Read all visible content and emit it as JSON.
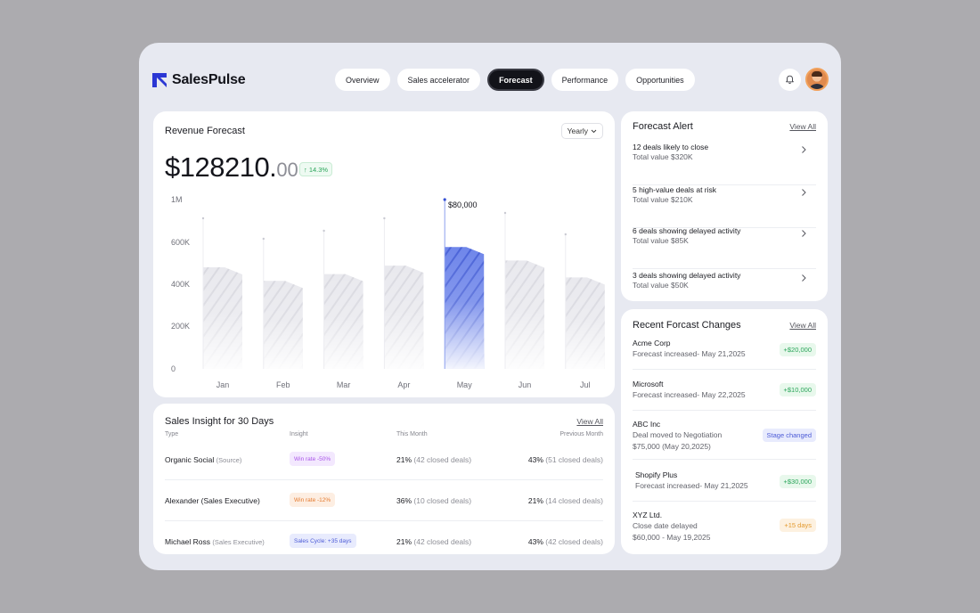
{
  "app": {
    "name": "SalesPulse"
  },
  "nav": {
    "tabs": [
      {
        "label": "Overview"
      },
      {
        "label": "Sales accelerator"
      },
      {
        "label": "Forecast",
        "active": true
      },
      {
        "label": "Performance"
      },
      {
        "label": "Opportunities"
      }
    ]
  },
  "icons": {
    "logo": "salespulse-logo",
    "notification": "bell-icon",
    "avatar": "user-avatar"
  },
  "colors": {
    "accent": "#4a63d8",
    "active_tab": "#121319",
    "positive": "#2aa55a"
  },
  "revenue": {
    "title": "Revenue Forecast",
    "period": "Yearly",
    "amount_main": "$128210.",
    "amount_cents": "00",
    "growth": "↑ 14.3%",
    "tooltip": "$80,000"
  },
  "chart_data": {
    "type": "bar",
    "categories": [
      "Jan",
      "Feb",
      "Mar",
      "Apr",
      "May",
      "Jun",
      "Jul"
    ],
    "values": [
      600000,
      520000,
      560000,
      610000,
      720000,
      640000,
      540000
    ],
    "yticks": [
      "1M",
      "600K",
      "400K",
      "200K",
      "0"
    ],
    "highlight": "May",
    "grid": false,
    "legend": "none"
  },
  "insight": {
    "title": "Sales Insight for 30 Days",
    "view_all": "View All",
    "headers": {
      "type": "Type",
      "insight": "Insight",
      "this_month": "This Month",
      "previous_month": "Previous Month"
    },
    "rows": [
      {
        "name": "Organic Social",
        "sub": "(Source)",
        "pill": "Win rate -50%",
        "pill_color": "purple",
        "this_pct": "21%",
        "this_note": "(42 closed deals)",
        "prev_pct": "43%",
        "prev_note": "(51 closed deals)"
      },
      {
        "name": "Alexander  (Sales Executive)",
        "sub": "",
        "pill": "Win rate -12%",
        "pill_color": "orange",
        "this_pct": "36%",
        "this_note": "(10 closed deals)",
        "prev_pct": "21%",
        "prev_note": "(14 closed deals)"
      },
      {
        "name": "Michael Ross",
        "sub": "(Sales Executive)",
        "pill": "Sales Cycle: +35 days",
        "pill_color": "blue",
        "this_pct": "21%",
        "this_note": "(42 closed deals)",
        "prev_pct": "43%",
        "prev_note": "(42 closed deals)"
      }
    ]
  },
  "alerts": {
    "title": "Forecast Alert",
    "view_all": "View All",
    "items": [
      {
        "title": "12 deals likely to close",
        "value": "Total value $320K"
      },
      {
        "title": "5 high-value deals at risk",
        "value": "Total value $210K"
      },
      {
        "title": "6 deals showing delayed activity",
        "value": "Total value $85K"
      },
      {
        "title": "3 deals showing delayed activity",
        "value": "Total value $50K"
      }
    ]
  },
  "changes": {
    "title": "Recent Forcast Changes",
    "view_all": "View All",
    "items": [
      {
        "name": "Acme Corp",
        "line1": "Forecast increased- May 21,2025",
        "line2": "",
        "badge": "+$20,000",
        "badge_color": "green"
      },
      {
        "name": "Microsoft",
        "line1": "Forecast increased- May 22,2025",
        "line2": "",
        "badge": "+$10,000",
        "badge_color": "green"
      },
      {
        "name": "ABC Inc",
        "line1": "Deal moved to Negotiation",
        "line2": "$75,000 (May 20,2025)",
        "badge": "Stage changed",
        "badge_color": "indigo"
      },
      {
        "name": "Shopify Plus",
        "line1": "Forecast increased- May 21,2025",
        "line2": "",
        "badge": "+$30,000",
        "badge_color": "green"
      },
      {
        "name": "XYZ Ltd.",
        "line1": "Close date delayed",
        "line2": "$60,000 - May 19,2025",
        "badge": "+15 days",
        "badge_color": "amber"
      }
    ]
  }
}
